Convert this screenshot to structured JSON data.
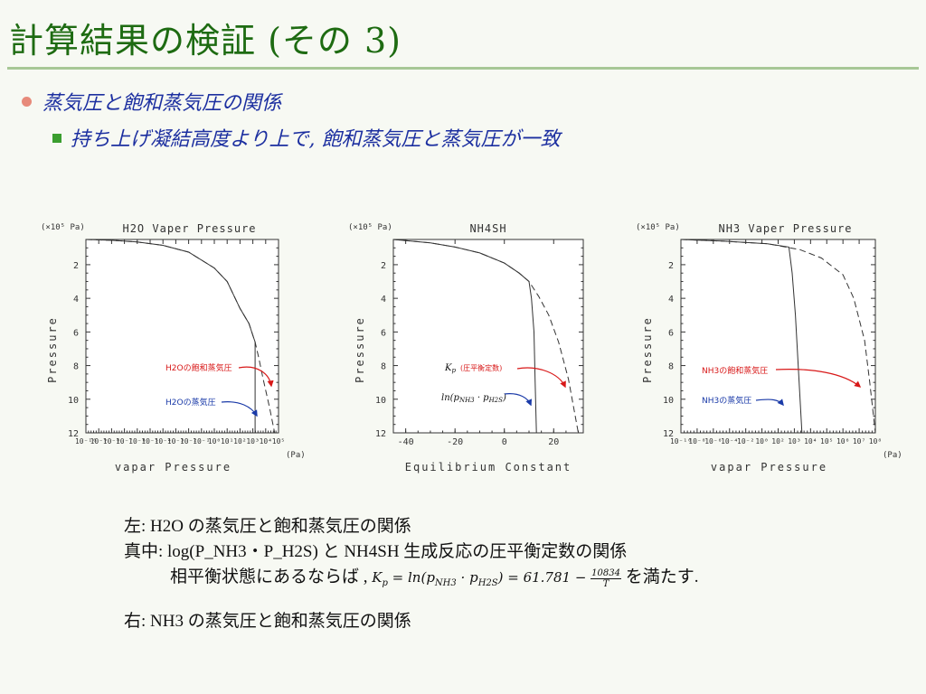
{
  "header": {
    "title": "計算結果の検証 (その 3)"
  },
  "bullets": {
    "level1": "蒸気圧と飽和蒸気圧の関係",
    "level2": "持ち上げ凝結高度より上で, 飽和蒸気圧と蒸気圧が一致"
  },
  "colors": {
    "title": "#1e6b12",
    "bullet_text": "#1c2fa0",
    "red_annotation": "#d81818",
    "blue_annotation": "#1a3aa8"
  },
  "chart_data": [
    {
      "type": "line",
      "title": "H2O Vaper Pressure",
      "unit_label": "(×10⁵ Pa)",
      "xlabel": "vapar Pressure",
      "xunit": "(Pa)",
      "ylabel": "Pressure",
      "xscale": "log",
      "xlim": [
        1e-10,
        100000.0
      ],
      "xtick_labels": [
        "10⁻¹⁰",
        "10⁻⁹",
        "10⁻⁸",
        "10⁻⁷",
        "10⁻⁶",
        "10⁻⁵",
        "10⁻⁴",
        "10⁻³",
        "10⁻²",
        "10⁻¹",
        "10⁰",
        "10¹",
        "10²",
        "10³",
        "10⁴",
        "10⁵"
      ],
      "yticks": [
        2,
        4,
        6,
        8,
        10,
        12
      ],
      "ylim": [
        12,
        0.5
      ],
      "series": [
        {
          "name": "H2Oの飽和蒸気圧",
          "style": "dashed",
          "x": [
            1e-10,
            1e-08,
            1e-06,
            0.0001,
            0.01,
            1,
            10,
            100,
            500,
            1000,
            1500,
            3000,
            6000,
            20000,
            50000
          ],
          "y": [
            0.5,
            0.55,
            0.65,
            0.85,
            1.25,
            2.2,
            3.0,
            4.6,
            5.5,
            6.2,
            6.6,
            7.6,
            8.7,
            10.5,
            12
          ]
        },
        {
          "name": "H2Oの蒸気圧",
          "style": "solid",
          "x": [
            1e-10,
            1e-08,
            1e-06,
            0.0001,
            0.01,
            1,
            10,
            100,
            500,
            1000,
            1500,
            1500,
            1500,
            1500
          ],
          "y": [
            0.5,
            0.55,
            0.65,
            0.85,
            1.25,
            2.2,
            3.0,
            4.6,
            5.5,
            6.2,
            6.6,
            8.0,
            10.0,
            12
          ]
        }
      ],
      "annotations": [
        {
          "text": "H2Oの飽和蒸気圧",
          "color": "red"
        },
        {
          "text": "H2Oの蒸気圧",
          "color": "blue"
        }
      ]
    },
    {
      "type": "line",
      "title": "NH4SH",
      "unit_label": "(×10⁵ Pa)",
      "xlabel": "Equilibrium Constant",
      "ylabel": "Pressure",
      "xlim": [
        -45,
        32
      ],
      "xticks": [
        -40,
        -20,
        0,
        20
      ],
      "yticks": [
        2,
        4,
        6,
        8,
        10,
        12
      ],
      "ylim": [
        12,
        0.5
      ],
      "series": [
        {
          "name": "Kp (圧平衡定数)",
          "style": "dashed",
          "x": [
            -45,
            -30,
            -20,
            -10,
            0,
            6,
            10,
            14,
            18,
            22,
            26,
            30
          ],
          "y": [
            0.5,
            0.7,
            0.95,
            1.3,
            1.9,
            2.5,
            3.0,
            3.9,
            5.0,
            6.6,
            8.8,
            12
          ]
        },
        {
          "name": "ln(pNH3 · pH2S)",
          "style": "solid",
          "x": [
            -45,
            -30,
            -20,
            -10,
            0,
            6,
            10,
            11,
            12,
            12.5,
            13
          ],
          "y": [
            0.5,
            0.7,
            0.95,
            1.3,
            1.9,
            2.5,
            3.0,
            4.0,
            6.0,
            9.0,
            12
          ]
        }
      ],
      "annotations": [
        {
          "text_main": "K",
          "text_sub": "p",
          "text_note": "(圧平衡定数)",
          "color": "red"
        },
        {
          "text_main": "ln(p",
          "text_sub1": "NH3",
          "text_mid": " · p",
          "text_sub2": "H2S",
          "text_end": ")",
          "color": "blue"
        }
      ]
    },
    {
      "type": "line",
      "title": "NH3 Vaper Pressure",
      "unit_label": "(×10⁵ Pa)",
      "xlabel": "vapar Pressure",
      "xunit": "(Pa)",
      "ylabel": "Pressure",
      "xscale": "log",
      "xlim": [
        1e-10,
        100000000.0
      ],
      "xtick_labels": [
        "10⁻¹⁰",
        "10⁻⁸",
        "10⁻⁶",
        "10⁻⁴",
        "10⁻²",
        "10⁰",
        "10²",
        "10³",
        "10⁴",
        "10⁵",
        "10⁶",
        "10⁷",
        "10⁸"
      ],
      "yticks": [
        2,
        4,
        6,
        8,
        10,
        12
      ],
      "ylim": [
        12,
        0.5
      ],
      "series": [
        {
          "name": "NH3の飽和蒸気圧",
          "style": "dashed",
          "x": [
            1e-10,
            1e-06,
            0.01,
            10,
            1000,
            100000.0,
            1000000.0,
            10000000.0,
            30000000.0,
            100000000.0
          ],
          "y": [
            0.5,
            0.6,
            0.75,
            1.1,
            1.6,
            2.6,
            4.0,
            6.5,
            9.0,
            12
          ]
        },
        {
          "name": "NH3の蒸気圧",
          "style": "solid",
          "x": [
            1e-10,
            1e-06,
            0.01,
            1,
            2,
            4,
            8,
            16
          ],
          "y": [
            0.5,
            0.6,
            0.75,
            0.95,
            2.5,
            5.0,
            8.5,
            12
          ]
        }
      ],
      "annotations": [
        {
          "text": "NH3の飽和蒸気圧",
          "color": "red"
        },
        {
          "text": "NH3の蒸気圧",
          "color": "blue"
        }
      ]
    }
  ],
  "captions": {
    "left": "左:   H2O の蒸気圧と飽和蒸気圧の関係",
    "center": "真中: log(P_NH3・P_H2S) と NH4SH 生成反応の圧平衡定数の関係",
    "center2_pre": "相平衡状態にあるならば ,",
    "center2_formula": "Kp = ln(pNH3 · pH2S) = 61.781 − 10834/T",
    "center2_post": "を満たす.",
    "right": "右:   NH3 の蒸気圧と飽和蒸気圧の関係"
  }
}
